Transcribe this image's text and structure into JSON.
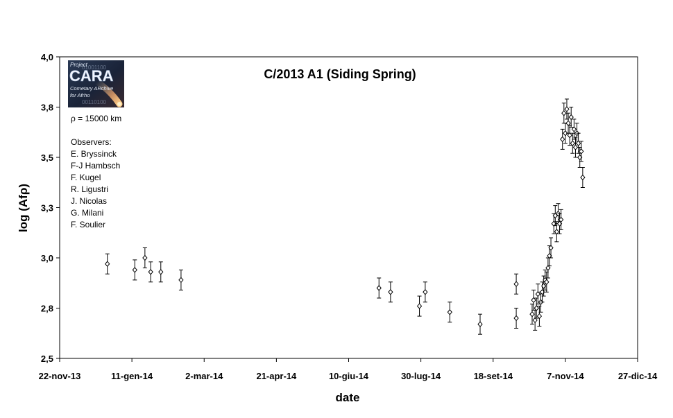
{
  "chart_data": {
    "type": "scatter",
    "title": "C/2013 A1 (Siding Spring)",
    "xlabel": "date",
    "ylabel": "log (Afρ)",
    "x_ticks": [
      "22-nov-13",
      "11-gen-14",
      "2-mar-14",
      "21-apr-14",
      "10-giu-14",
      "30-lug-14",
      "18-set-14",
      "7-nov-14",
      "27-dic-14"
    ],
    "x_range": [
      "2013-11-22",
      "2014-12-27"
    ],
    "y_ticks": [
      "2,5",
      "2,8",
      "3,0",
      "3,3",
      "3,5",
      "3,8",
      "4,0"
    ],
    "ylim": [
      2.5,
      4.0
    ],
    "grid": false,
    "marker": "open-diamond",
    "error_bars": true,
    "points": [
      {
        "date": "2013-12-25",
        "y": 2.97,
        "err": 0.05
      },
      {
        "date": "2014-01-13",
        "y": 2.94,
        "err": 0.05
      },
      {
        "date": "2014-01-20",
        "y": 3.0,
        "err": 0.05
      },
      {
        "date": "2014-01-24",
        "y": 2.93,
        "err": 0.05
      },
      {
        "date": "2014-01-31",
        "y": 2.93,
        "err": 0.05
      },
      {
        "date": "2014-02-14",
        "y": 2.89,
        "err": 0.05
      },
      {
        "date": "2014-07-01",
        "y": 2.85,
        "err": 0.05
      },
      {
        "date": "2014-07-09",
        "y": 2.83,
        "err": 0.05
      },
      {
        "date": "2014-07-29",
        "y": 2.76,
        "err": 0.05
      },
      {
        "date": "2014-08-02",
        "y": 2.83,
        "err": 0.05
      },
      {
        "date": "2014-08-19",
        "y": 2.73,
        "err": 0.05
      },
      {
        "date": "2014-09-09",
        "y": 2.67,
        "err": 0.05
      },
      {
        "date": "2014-10-04",
        "y": 2.87,
        "err": 0.05
      },
      {
        "date": "2014-10-04",
        "y": 2.7,
        "err": 0.05
      },
      {
        "date": "2014-10-15",
        "y": 2.72,
        "err": 0.05
      },
      {
        "date": "2014-10-16",
        "y": 2.79,
        "err": 0.05
      },
      {
        "date": "2014-10-17",
        "y": 2.69,
        "err": 0.05
      },
      {
        "date": "2014-10-18",
        "y": 2.75,
        "err": 0.05
      },
      {
        "date": "2014-10-19",
        "y": 2.82,
        "err": 0.05
      },
      {
        "date": "2014-10-20",
        "y": 2.71,
        "err": 0.05
      },
      {
        "date": "2014-10-21",
        "y": 2.78,
        "err": 0.05
      },
      {
        "date": "2014-10-22",
        "y": 2.83,
        "err": 0.05
      },
      {
        "date": "2014-10-23",
        "y": 2.86,
        "err": 0.05
      },
      {
        "date": "2014-10-24",
        "y": 2.89,
        "err": 0.05
      },
      {
        "date": "2014-10-25",
        "y": 2.88,
        "err": 0.05
      },
      {
        "date": "2014-10-26",
        "y": 2.95,
        "err": 0.05
      },
      {
        "date": "2014-10-27",
        "y": 3.01,
        "err": 0.05
      },
      {
        "date": "2014-10-28",
        "y": 3.05,
        "err": 0.05
      },
      {
        "date": "2014-10-30",
        "y": 3.17,
        "err": 0.05
      },
      {
        "date": "2014-10-31",
        "y": 3.21,
        "err": 0.05
      },
      {
        "date": "2014-11-01",
        "y": 3.13,
        "err": 0.05
      },
      {
        "date": "2014-11-02",
        "y": 3.22,
        "err": 0.05
      },
      {
        "date": "2014-11-03",
        "y": 3.17,
        "err": 0.05
      },
      {
        "date": "2014-11-04",
        "y": 3.19,
        "err": 0.05
      },
      {
        "date": "2014-11-05",
        "y": 3.59,
        "err": 0.05
      },
      {
        "date": "2014-11-06",
        "y": 3.72,
        "err": 0.05
      },
      {
        "date": "2014-11-07",
        "y": 3.62,
        "err": 0.05
      },
      {
        "date": "2014-11-08",
        "y": 3.74,
        "err": 0.05
      },
      {
        "date": "2014-11-09",
        "y": 3.67,
        "err": 0.05
      },
      {
        "date": "2014-11-10",
        "y": 3.61,
        "err": 0.05
      },
      {
        "date": "2014-11-11",
        "y": 3.7,
        "err": 0.05
      },
      {
        "date": "2014-11-12",
        "y": 3.57,
        "err": 0.05
      },
      {
        "date": "2014-11-13",
        "y": 3.64,
        "err": 0.05
      },
      {
        "date": "2014-11-14",
        "y": 3.55,
        "err": 0.05
      },
      {
        "date": "2014-11-15",
        "y": 3.62,
        "err": 0.05
      },
      {
        "date": "2014-11-16",
        "y": 3.57,
        "err": 0.05
      },
      {
        "date": "2014-11-17",
        "y": 3.5,
        "err": 0.05
      },
      {
        "date": "2014-11-18",
        "y": 3.53,
        "err": 0.05
      },
      {
        "date": "2014-11-19",
        "y": 3.4,
        "err": 0.05
      }
    ]
  },
  "logo": {
    "project": "Project",
    "name": "CARA",
    "line1": "Cometary ARchive",
    "line2": "for Afrho"
  },
  "info": {
    "rho": "ρ = 15000 km",
    "observers_heading": "Observers:",
    "observers": [
      "E. Bryssinck",
      "F-J Hambsch",
      "F. Kugel",
      "R. Ligustri",
      "J. Nicolas",
      "G. Milani",
      "F. Soulier"
    ]
  }
}
